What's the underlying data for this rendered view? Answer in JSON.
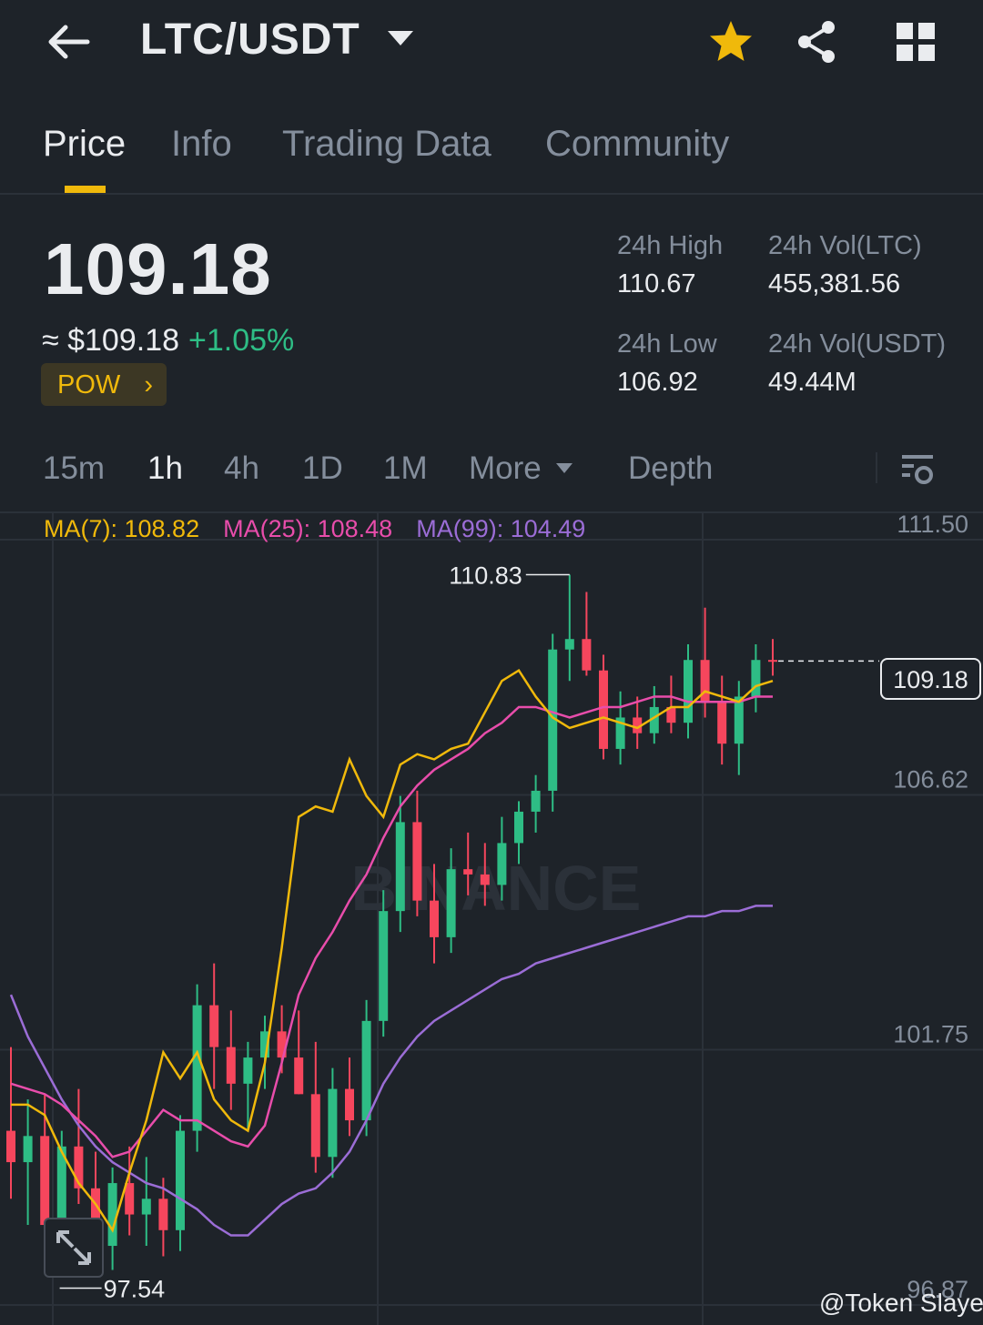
{
  "header": {
    "pair": "LTC/USDT",
    "icons": [
      "back-arrow-icon",
      "chevron-down-icon",
      "star-icon",
      "share-icon",
      "grid-icon"
    ]
  },
  "tabs": [
    "Price",
    "Info",
    "Trading Data",
    "Community"
  ],
  "ticker": {
    "last_price": "109.18",
    "fiat_price": "≈ $109.18",
    "change": "+1.05%",
    "tag": "POW",
    "tag_arrow": "›",
    "high_label": "24h High",
    "high": "110.67",
    "low_label": "24h Low",
    "low": "106.92",
    "vol_base_label": "24h Vol(LTC)",
    "vol_base": "455,381.56",
    "vol_quote_label": "24h Vol(USDT)",
    "vol_quote": "49.44M"
  },
  "intervals": [
    "15m",
    "1h",
    "4h",
    "1D",
    "1M",
    "More",
    "Depth"
  ],
  "ma": {
    "ma7": "MA(7): 108.82",
    "ma25": "MA(25): 108.48",
    "ma99": "MA(99): 104.49"
  },
  "colors": {
    "up": "#2ebd85",
    "down": "#f6465d",
    "accent": "#f0b90b",
    "ma7": "#f0b90b",
    "ma25": "#e84dab",
    "ma99": "#9b6dd6"
  },
  "chart_data": {
    "type": "candlestick",
    "y_ticks": [
      "111.50",
      "106.62",
      "101.75",
      "96.87"
    ],
    "ylim": [
      96.87,
      111.5
    ],
    "current_price_label": "109.18",
    "max_label": "110.83",
    "min_label": "97.54",
    "watermark": "BINANCE",
    "ma7": [
      100.7,
      100.7,
      100.5,
      99.8,
      99.2,
      98.8,
      98.3,
      99.4,
      100.4,
      101.7,
      101.2,
      101.7,
      100.8,
      100.4,
      100.2,
      101.5,
      103.7,
      106.2,
      106.4,
      106.3,
      107.3,
      106.6,
      106.2,
      107.2,
      107.4,
      107.3,
      107.5,
      107.6,
      108.2,
      108.8,
      109.0,
      108.5,
      108.1,
      107.9,
      108.0,
      108.1,
      108.0,
      107.9,
      108.1,
      108.3,
      108.3,
      108.6,
      108.5,
      108.4,
      108.7,
      108.8
    ],
    "ma25": [
      101.1,
      101.0,
      100.9,
      100.7,
      100.4,
      100.1,
      99.7,
      99.8,
      100.2,
      100.6,
      100.4,
      100.4,
      100.2,
      100.0,
      99.9,
      100.3,
      101.5,
      102.8,
      103.5,
      104.0,
      104.6,
      105.1,
      105.8,
      106.4,
      106.8,
      107.1,
      107.3,
      107.5,
      107.8,
      108.0,
      108.3,
      108.3,
      108.2,
      108.1,
      108.2,
      108.3,
      108.3,
      108.4,
      108.5,
      108.5,
      108.4,
      108.4,
      108.4,
      108.4,
      108.5,
      108.5
    ],
    "ma99": [
      102.8,
      102.0,
      101.4,
      100.8,
      100.3,
      99.9,
      99.6,
      99.4,
      99.2,
      99.1,
      98.9,
      98.7,
      98.4,
      98.2,
      98.2,
      98.5,
      98.8,
      99.0,
      99.1,
      99.4,
      99.8,
      100.4,
      101.1,
      101.6,
      102.0,
      102.3,
      102.5,
      102.7,
      102.9,
      103.1,
      103.2,
      103.4,
      103.5,
      103.6,
      103.7,
      103.8,
      103.9,
      104.0,
      104.1,
      104.2,
      104.3,
      104.3,
      104.4,
      104.4,
      104.5,
      104.5
    ],
    "candles": [
      {
        "o": 100.2,
        "h": 101.8,
        "l": 98.9,
        "c": 99.6
      },
      {
        "o": 99.6,
        "h": 100.8,
        "l": 98.4,
        "c": 100.1
      },
      {
        "o": 100.1,
        "h": 100.9,
        "l": 97.8,
        "c": 98.4
      },
      {
        "o": 98.4,
        "h": 100.2,
        "l": 97.9,
        "c": 99.9
      },
      {
        "o": 99.9,
        "h": 101.0,
        "l": 98.8,
        "c": 99.1
      },
      {
        "o": 99.1,
        "h": 99.8,
        "l": 97.6,
        "c": 98.0
      },
      {
        "o": 98.0,
        "h": 99.5,
        "l": 97.54,
        "c": 99.2
      },
      {
        "o": 99.2,
        "h": 99.9,
        "l": 98.2,
        "c": 98.6
      },
      {
        "o": 98.6,
        "h": 99.7,
        "l": 98.0,
        "c": 98.9
      },
      {
        "o": 98.9,
        "h": 99.3,
        "l": 97.8,
        "c": 98.3
      },
      {
        "o": 98.3,
        "h": 100.5,
        "l": 97.9,
        "c": 100.2
      },
      {
        "o": 100.2,
        "h": 103.0,
        "l": 99.8,
        "c": 102.6
      },
      {
        "o": 102.6,
        "h": 103.4,
        "l": 101.0,
        "c": 101.8
      },
      {
        "o": 101.8,
        "h": 102.5,
        "l": 100.6,
        "c": 101.1
      },
      {
        "o": 101.1,
        "h": 101.9,
        "l": 100.2,
        "c": 101.6
      },
      {
        "o": 101.6,
        "h": 102.4,
        "l": 101.0,
        "c": 102.1
      },
      {
        "o": 102.1,
        "h": 102.6,
        "l": 101.3,
        "c": 101.6
      },
      {
        "o": 101.6,
        "h": 102.5,
        "l": 100.9,
        "c": 100.9
      },
      {
        "o": 100.9,
        "h": 101.9,
        "l": 99.4,
        "c": 99.7
      },
      {
        "o": 99.7,
        "h": 101.4,
        "l": 99.3,
        "c": 101.0
      },
      {
        "o": 101.0,
        "h": 101.6,
        "l": 100.1,
        "c": 100.4
      },
      {
        "o": 100.4,
        "h": 102.7,
        "l": 100.1,
        "c": 102.3
      },
      {
        "o": 102.3,
        "h": 104.8,
        "l": 102.0,
        "c": 104.4
      },
      {
        "o": 104.4,
        "h": 106.6,
        "l": 104.0,
        "c": 106.1
      },
      {
        "o": 106.1,
        "h": 106.7,
        "l": 104.3,
        "c": 104.6
      },
      {
        "o": 104.6,
        "h": 105.3,
        "l": 103.4,
        "c": 103.9
      },
      {
        "o": 103.9,
        "h": 105.6,
        "l": 103.6,
        "c": 105.2
      },
      {
        "o": 105.2,
        "h": 105.9,
        "l": 104.7,
        "c": 105.1
      },
      {
        "o": 105.1,
        "h": 105.7,
        "l": 104.5,
        "c": 104.9
      },
      {
        "o": 104.9,
        "h": 106.2,
        "l": 104.6,
        "c": 105.7
      },
      {
        "o": 105.7,
        "h": 106.5,
        "l": 105.3,
        "c": 106.3
      },
      {
        "o": 106.3,
        "h": 107.0,
        "l": 105.9,
        "c": 106.7
      },
      {
        "o": 106.7,
        "h": 109.7,
        "l": 106.3,
        "c": 109.4
      },
      {
        "o": 109.4,
        "h": 110.83,
        "l": 108.8,
        "c": 109.6
      },
      {
        "o": 109.6,
        "h": 110.5,
        "l": 108.9,
        "c": 109.0
      },
      {
        "o": 109.0,
        "h": 109.3,
        "l": 107.3,
        "c": 107.5
      },
      {
        "o": 107.5,
        "h": 108.6,
        "l": 107.2,
        "c": 108.1
      },
      {
        "o": 108.1,
        "h": 108.5,
        "l": 107.5,
        "c": 107.8
      },
      {
        "o": 107.8,
        "h": 108.7,
        "l": 107.6,
        "c": 108.3
      },
      {
        "o": 108.3,
        "h": 108.9,
        "l": 107.8,
        "c": 108.0
      },
      {
        "o": 108.0,
        "h": 109.5,
        "l": 107.7,
        "c": 109.2
      },
      {
        "o": 109.2,
        "h": 110.2,
        "l": 108.1,
        "c": 108.4
      },
      {
        "o": 108.4,
        "h": 108.9,
        "l": 107.2,
        "c": 107.6
      },
      {
        "o": 107.6,
        "h": 108.8,
        "l": 107.0,
        "c": 108.5
      },
      {
        "o": 108.5,
        "h": 109.5,
        "l": 108.2,
        "c": 109.2
      },
      {
        "o": 109.2,
        "h": 109.6,
        "l": 108.9,
        "c": 109.18
      }
    ]
  },
  "watermark": "@Token Slayer"
}
